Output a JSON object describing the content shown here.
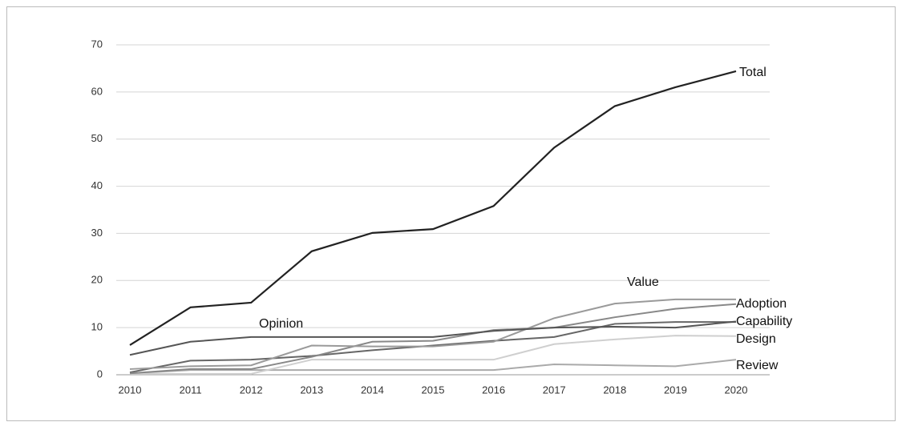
{
  "chart_data": {
    "type": "line",
    "x": [
      2010,
      2011,
      2012,
      2013,
      2014,
      2015,
      2016,
      2017,
      2018,
      2019,
      2020
    ],
    "series": [
      {
        "name": "Total",
        "color": "#222222",
        "values": [
          6.3,
          14.3,
          15.3,
          26.2,
          30.1,
          30.9,
          35.8,
          48.2,
          57,
          61,
          64.4
        ]
      },
      {
        "name": "Opinion",
        "color": "#555555",
        "values": [
          4.2,
          7,
          8,
          8,
          8,
          8,
          9.3,
          10,
          10.2,
          10,
          11.3
        ]
      },
      {
        "name": "Value",
        "color": "#9a9a9a",
        "values": [
          1.2,
          1.8,
          2,
          6.2,
          6,
          6,
          7,
          12,
          15.1,
          16,
          16
        ]
      },
      {
        "name": "Adoption",
        "color": "#888888",
        "values": [
          0.3,
          1.2,
          1.2,
          3.8,
          7,
          7.2,
          9.5,
          10,
          12.2,
          14,
          15
        ]
      },
      {
        "name": "Capability",
        "color": "#666666",
        "values": [
          0.5,
          3,
          3.2,
          4,
          5.2,
          6.2,
          7.2,
          8,
          10.8,
          11.2,
          11.2
        ]
      },
      {
        "name": "Design",
        "color": "#cfcfcf",
        "values": [
          0.2,
          0.2,
          0.2,
          3.2,
          3.2,
          3.2,
          3.2,
          6.5,
          7.5,
          8.3,
          8.2
        ]
      },
      {
        "name": "Review",
        "color": "#aaaaaa",
        "values": [
          0.3,
          1,
          1,
          1,
          1,
          1,
          1,
          2.2,
          2,
          1.8,
          3.2
        ]
      }
    ],
    "ylim": [
      0,
      70
    ],
    "yticks": [
      0,
      10,
      20,
      30,
      40,
      50,
      60,
      70
    ],
    "grid": true
  }
}
